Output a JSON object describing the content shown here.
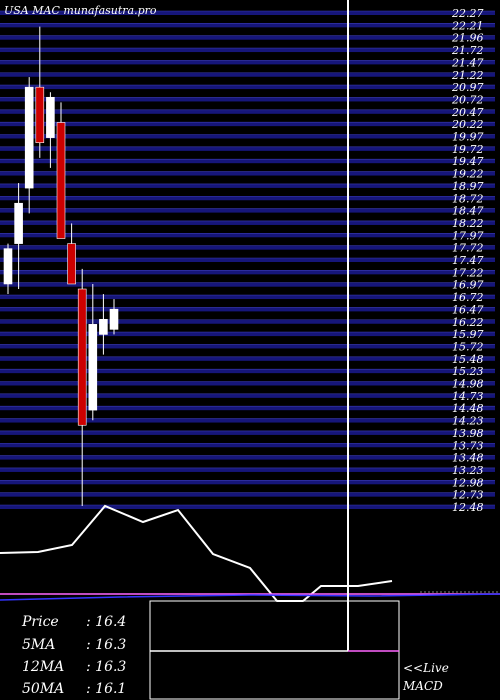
{
  "chart_data": {
    "type": "candlestick",
    "title": "USA MAC munafasutra.pro",
    "y_tick_labels": [
      "22.27",
      "22.21",
      "21.96",
      "21.72",
      "21.47",
      "21.22",
      "20.97",
      "20.72",
      "20.47",
      "20.22",
      "19.97",
      "19.72",
      "19.47",
      "19.22",
      "18.97",
      "18.72",
      "18.47",
      "18.22",
      "17.97",
      "17.72",
      "17.47",
      "17.22",
      "16.97",
      "16.72",
      "16.47",
      "16.22",
      "15.97",
      "15.72",
      "15.48",
      "15.23",
      "14.98",
      "14.73",
      "14.48",
      "14.23",
      "13.98",
      "13.73",
      "13.48",
      "13.23",
      "12.98",
      "12.73",
      "12.48"
    ],
    "ylim": [
      12.48,
      22.27
    ],
    "candles": [
      {
        "open": 16.9,
        "high": 17.7,
        "low": 16.7,
        "close": 17.6,
        "dir": "up"
      },
      {
        "open": 17.7,
        "high": 18.9,
        "low": 16.8,
        "close": 18.5,
        "dir": "up"
      },
      {
        "open": 18.8,
        "high": 21.0,
        "low": 18.3,
        "close": 20.8,
        "dir": "up"
      },
      {
        "open": 20.8,
        "high": 22.0,
        "low": 19.4,
        "close": 19.7,
        "dir": "down"
      },
      {
        "open": 19.8,
        "high": 20.7,
        "low": 19.2,
        "close": 20.6,
        "dir": "up"
      },
      {
        "open": 20.1,
        "high": 20.5,
        "low": 17.8,
        "close": 17.8,
        "dir": "down"
      },
      {
        "open": 17.7,
        "high": 18.1,
        "low": 16.9,
        "close": 16.9,
        "dir": "down"
      },
      {
        "open": 16.8,
        "high": 17.2,
        "low": 12.5,
        "close": 14.1,
        "dir": "down"
      },
      {
        "open": 14.4,
        "high": 16.9,
        "low": 14.2,
        "close": 16.1,
        "dir": "up"
      },
      {
        "open": 15.9,
        "high": 16.7,
        "low": 15.5,
        "close": 16.2,
        "dir": "up"
      },
      {
        "open": 16.0,
        "high": 16.6,
        "low": 15.9,
        "close": 16.4,
        "dir": "up"
      }
    ],
    "indicators": {
      "price_label": "Price",
      "price": "16.4",
      "ma5_label": "5MA",
      "ma5": "16.3",
      "ma12_label": "12MA",
      "ma12": "16.3",
      "ma50_label": "50MA",
      "ma50": "16.1"
    },
    "live_label": "<<Live",
    "macd_label": "MACD",
    "colors": {
      "background": "#000000",
      "gridline": "#16167a",
      "gridline_edge": "#3a3ab0",
      "up_candle": "#ffffff",
      "down_candle": "#cc0000",
      "wick": "#ffffff",
      "text": "#ffffff",
      "volume_ma": "#ff66ff",
      "macd_line": "#3333ff"
    }
  }
}
